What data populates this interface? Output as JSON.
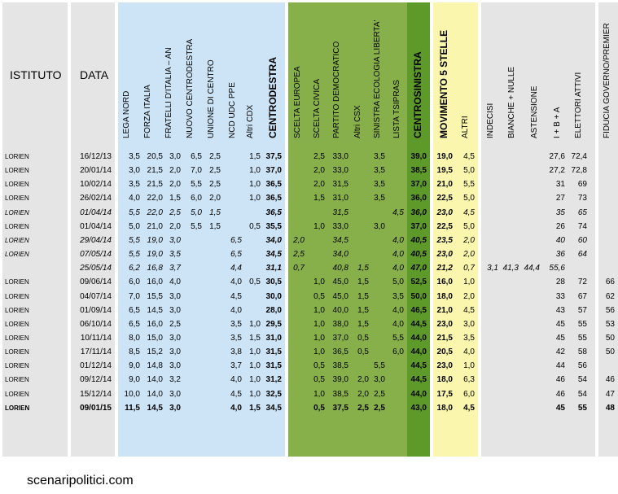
{
  "header": {
    "istituto": "ISTITUTO",
    "data": "DATA",
    "columns": [
      "LEGA NORD",
      "FORZA ITALIA",
      "FRATELLI D'ITALIA – AN",
      "NUOVO  CENTRODESTRA",
      "UNIONE DI CENTRO",
      "NCD UDC PPE",
      "Altri CDX",
      "CENTRODESTRA",
      "SCELTA EUROPEA",
      "SCELTA CIVICA",
      "PARTITO DEMOCRATICO",
      "Altri CSX",
      "SINISTRA ECOLOGIA LIBERTA'",
      "LISTA TSIPRAS",
      "CENTROSINISTRA",
      "MOVIMENTO 5 STELLE",
      "ALTRI",
      "INDECISI",
      "BIANCHE + NULLE",
      "ASTENSIONE",
      "I + B + A",
      "ELETTORI ATTIVI",
      "FIDUCIA GOVERNO/PREMIER"
    ]
  },
  "rows": [
    {
      "style": "n",
      "cells": [
        "LORIEN",
        "16/12/13",
        "3,5",
        "20,5",
        "3,0",
        "6,5",
        "2,5",
        "",
        "1,5",
        "37,5",
        "",
        "2,5",
        "33,0",
        "",
        "3,5",
        "",
        "39,0",
        "19,0",
        "4,5",
        "",
        "",
        "",
        "27,6",
        "72,4",
        ""
      ]
    },
    {
      "style": "n",
      "cells": [
        "LORIEN",
        "20/01/14",
        "3,0",
        "21,5",
        "2,0",
        "7,0",
        "2,5",
        "",
        "1,0",
        "37,0",
        "",
        "2,0",
        "33,0",
        "",
        "3,5",
        "",
        "38,5",
        "19,5",
        "5,0",
        "",
        "",
        "",
        "27,2",
        "72,8",
        ""
      ]
    },
    {
      "style": "n",
      "cells": [
        "LORIEN",
        "10/02/14",
        "3,5",
        "21,5",
        "2,0",
        "5,5",
        "2,5",
        "",
        "1,0",
        "36,5",
        "",
        "2,0",
        "31,5",
        "",
        "3,5",
        "",
        "37,0",
        "21,0",
        "5,5",
        "",
        "",
        "",
        "31",
        "69",
        ""
      ]
    },
    {
      "style": "n",
      "cells": [
        "LORIEN",
        "26/02/14",
        "4,0",
        "22,0",
        "1,5",
        "6,0",
        "2,0",
        "",
        "1,0",
        "36,5",
        "",
        "1,5",
        "31,0",
        "",
        "3,5",
        "",
        "36,0",
        "22,5",
        "5,0",
        "",
        "",
        "",
        "27",
        "73",
        ""
      ]
    },
    {
      "style": "it",
      "cells": [
        "LORIEN",
        "01/04/14",
        "5,5",
        "22,0",
        "2,5",
        "5,0",
        "1,5",
        "",
        "",
        "36,5",
        "",
        "",
        "31,5",
        "",
        "",
        "4,5",
        "36,0",
        "23,0",
        "4,5",
        "",
        "",
        "",
        "35",
        "65",
        ""
      ]
    },
    {
      "style": "n",
      "cells": [
        "LORIEN",
        "01/04/14",
        "5,0",
        "21,0",
        "2,0",
        "5,5",
        "1,5",
        "",
        "0,5",
        "35,5",
        "",
        "1,0",
        "33,0",
        "",
        "3,0",
        "",
        "37,0",
        "22,5",
        "5,0",
        "",
        "",
        "",
        "26",
        "74",
        ""
      ]
    },
    {
      "style": "it",
      "cells": [
        "LORIEN",
        "29/04/14",
        "5,5",
        "19,0",
        "3,0",
        "",
        "",
        "6,5",
        "",
        "34,0",
        "2,0",
        "",
        "34,5",
        "",
        "",
        "4,0",
        "40,5",
        "23,5",
        "2,0",
        "",
        "",
        "",
        "40",
        "60",
        ""
      ]
    },
    {
      "style": "it",
      "cells": [
        "LORIEN",
        "07/05/14",
        "5,5",
        "19,0",
        "3,5",
        "",
        "",
        "6,5",
        "",
        "34,5",
        "2,5",
        "",
        "34,0",
        "",
        "",
        "4,0",
        "40,5",
        "23,0",
        "2,0",
        "",
        "",
        "",
        "36",
        "64",
        ""
      ]
    },
    {
      "style": "it",
      "cells": [
        "",
        "25/05/14",
        "6,2",
        "16,8",
        "3,7",
        "",
        "",
        "4,4",
        "",
        "31,1",
        "0,7",
        "",
        "40,8",
        "1,5",
        "",
        "4,0",
        "47,0",
        "21,2",
        "0,7",
        "3,1",
        "41,3",
        "44,4",
        "55,6",
        "",
        ""
      ]
    },
    {
      "style": "n",
      "cells": [
        "LORIEN",
        "09/06/14",
        "6,0",
        "16,0",
        "4,0",
        "",
        "",
        "4,0",
        "0,5",
        "30,5",
        "",
        "1,0",
        "45,0",
        "1,5",
        "",
        "5,0",
        "52,5",
        "16,0",
        "1,0",
        "",
        "",
        "",
        "28",
        "72",
        "66"
      ]
    },
    {
      "style": "n",
      "cells": [
        "LORIEN",
        "04/07/14",
        "7,0",
        "15,5",
        "3,0",
        "",
        "",
        "4,5",
        "",
        "30,0",
        "",
        "0,5",
        "45,0",
        "1,5",
        "",
        "3,5",
        "50,0",
        "18,0",
        "2,0",
        "",
        "",
        "",
        "33",
        "67",
        "62"
      ]
    },
    {
      "style": "n",
      "cells": [
        "LORIEN",
        "01/09/14",
        "6,5",
        "14,5",
        "3,0",
        "",
        "",
        "4,0",
        "",
        "28,0",
        "",
        "1,0",
        "40,0",
        "1,5",
        "",
        "4,0",
        "46,5",
        "21,0",
        "4,5",
        "",
        "",
        "",
        "43",
        "57",
        "56"
      ]
    },
    {
      "style": "n",
      "cells": [
        "LORIEN",
        "06/10/14",
        "6,5",
        "16,0",
        "2,5",
        "",
        "",
        "3,5",
        "1,0",
        "29,5",
        "",
        "1,0",
        "38,0",
        "1,5",
        "",
        "4,0",
        "44,5",
        "23,0",
        "3,0",
        "",
        "",
        "",
        "45",
        "55",
        "53"
      ]
    },
    {
      "style": "n",
      "cells": [
        "LORIEN",
        "10/11/14",
        "8,0",
        "15,0",
        "3,0",
        "",
        "",
        "3,5",
        "1,5",
        "31,0",
        "",
        "1,0",
        "37,0",
        "0,5",
        "",
        "5,5",
        "44,0",
        "21,5",
        "3,5",
        "",
        "",
        "",
        "45",
        "55",
        "50"
      ]
    },
    {
      "style": "n",
      "cells": [
        "LORIEN",
        "17/11/14",
        "8,5",
        "15,2",
        "3,0",
        "",
        "",
        "3,8",
        "1,0",
        "31,5",
        "",
        "1,0",
        "36,5",
        "0,5",
        "",
        "6,0",
        "44,0",
        "20,5",
        "4,0",
        "",
        "",
        "",
        "42",
        "58",
        "50"
      ]
    },
    {
      "style": "n",
      "cells": [
        "LORIEN",
        "01/12/14",
        "9,0",
        "14,8",
        "3,0",
        "",
        "",
        "3,7",
        "1,0",
        "31,5",
        "",
        "0,5",
        "38,5",
        "",
        "5,5",
        "",
        "44,5",
        "23,0",
        "1,0",
        "",
        "",
        "",
        "44",
        "56",
        ""
      ]
    },
    {
      "style": "n",
      "cells": [
        "LORIEN",
        "09/12/14",
        "9,0",
        "14,0",
        "3,2",
        "",
        "",
        "4,0",
        "1,0",
        "31,2",
        "",
        "0,5",
        "39,0",
        "2,0",
        "3,0",
        "",
        "44,5",
        "18,0",
        "6,3",
        "",
        "",
        "",
        "46",
        "54",
        "46"
      ]
    },
    {
      "style": "n",
      "cells": [
        "LORIEN",
        "15/12/14",
        "10,0",
        "14,0",
        "3,0",
        "",
        "",
        "4,5",
        "1,0",
        "32,5",
        "",
        "1,0",
        "38,5",
        "2,0",
        "2,5",
        "",
        "44,0",
        "17,5",
        "6,0",
        "",
        "",
        "",
        "46",
        "54",
        "47"
      ]
    },
    {
      "style": "bold",
      "cells": [
        "LORIEN",
        "09/01/15",
        "11,5",
        "14,5",
        "3,0",
        "",
        "",
        "4,0",
        "1,5",
        "34,5",
        "",
        "0,5",
        "37,5",
        "2,5",
        "2,5",
        "",
        "43,0",
        "18,0",
        "4,5",
        "",
        "",
        "",
        "45",
        "55",
        "48"
      ]
    }
  ],
  "footer": "scenaripolitici.com",
  "colors": {
    "gray": "#e5e5e5",
    "blue": "#cde4f6",
    "green": "#88b04a",
    "green_dark": "#5e9a2a",
    "yellow": "#fbf6ae"
  }
}
